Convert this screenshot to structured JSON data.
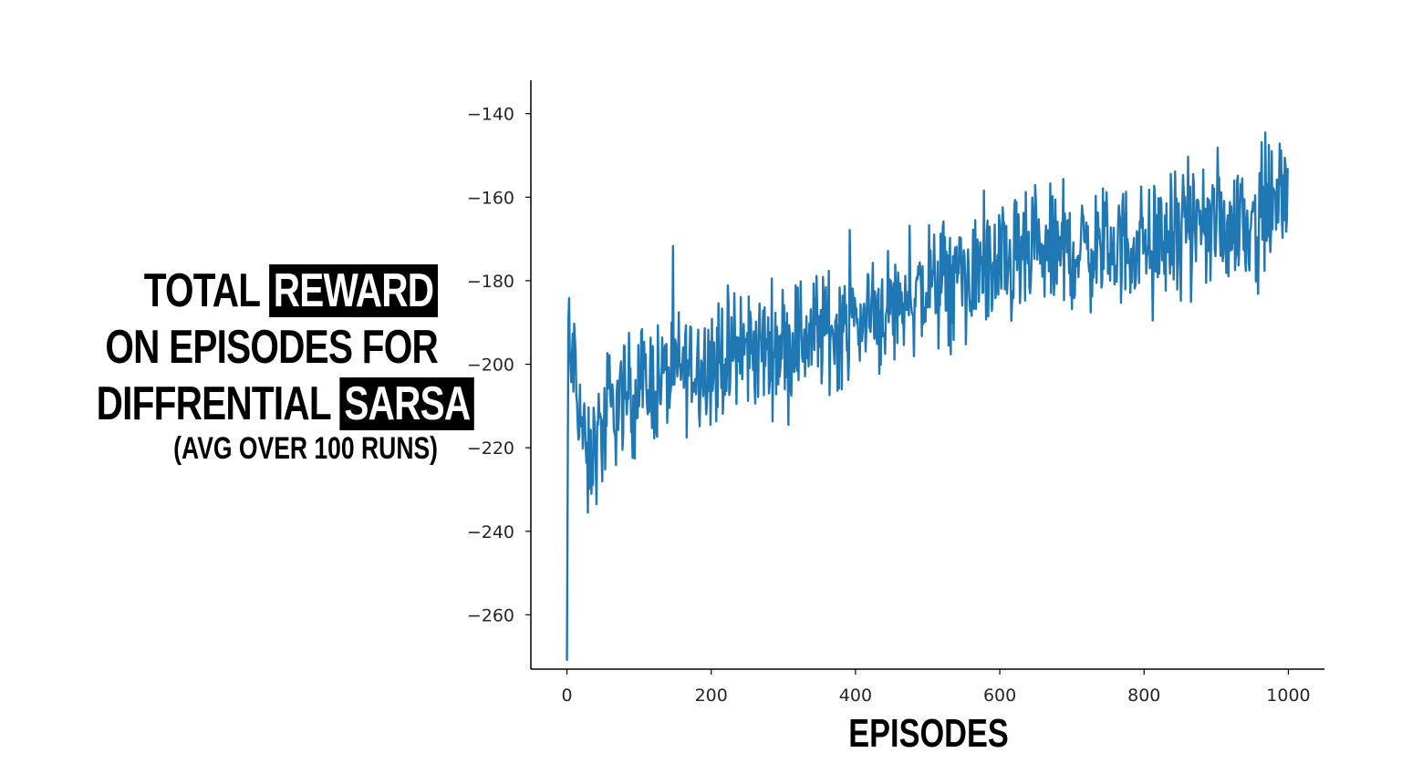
{
  "chart_data": {
    "type": "line",
    "ylabel_parts": {
      "line1_plain": "TOTAL",
      "line1_highlight": "REWARD",
      "line2_plain": "ON EPISODES FOR",
      "line3_plain": "DIFFRENTIAL",
      "line3_highlight": "SARSA",
      "subline": "(AVG OVER 100 RUNS)"
    },
    "xlabel": "EPISODES",
    "xlim": [
      -50,
      1050
    ],
    "ylim": [
      -273,
      -132
    ],
    "xticks": [
      0,
      200,
      400,
      600,
      800,
      1000
    ],
    "xtick_labels": [
      "0",
      "200",
      "400",
      "600",
      "800",
      "1000"
    ],
    "yticks": [
      -140,
      -160,
      -180,
      -200,
      -220,
      -240,
      -260
    ],
    "ytick_labels": [
      "−140",
      "−160",
      "−180",
      "−200",
      "−220",
      "−240",
      "−260"
    ],
    "grid": false,
    "series": [
      {
        "color": "#1f77b4",
        "n_points": 1000,
        "anchors_x": [
          0,
          2,
          5,
          8,
          12,
          18,
          25,
          30,
          40,
          50,
          60,
          75,
          100,
          125,
          150,
          175,
          200,
          250,
          300,
          350,
          400,
          450,
          500,
          550,
          600,
          650,
          700,
          750,
          800,
          850,
          900,
          950,
          985,
          995,
          999
        ],
        "anchors_y": [
          -271,
          -190,
          -205,
          -195,
          -205,
          -210,
          -222,
          -226,
          -218,
          -216,
          -212,
          -208,
          -206,
          -204,
          -202,
          -200,
          -199,
          -197,
          -195,
          -192,
          -190,
          -186,
          -182,
          -179,
          -177,
          -174,
          -173,
          -172,
          -171,
          -169,
          -167,
          -165,
          -162,
          -158,
          -168
        ],
        "noise_amplitude": 7
      }
    ]
  }
}
